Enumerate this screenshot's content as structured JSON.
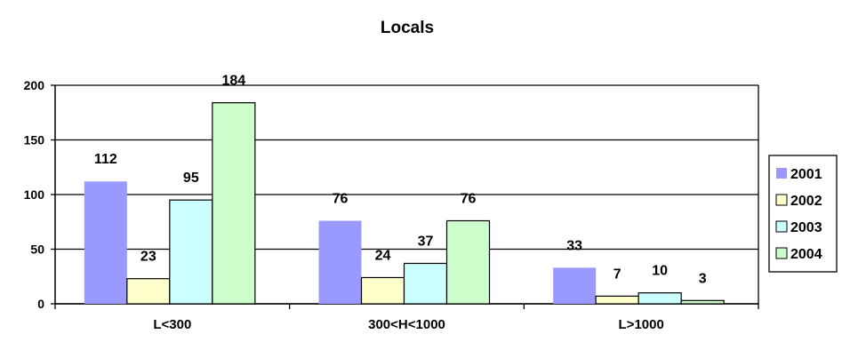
{
  "chart_data": {
    "type": "bar",
    "title": "Locals",
    "categories": [
      "L<300",
      "300<H<1000",
      "L>1000"
    ],
    "series": [
      {
        "name": "2001",
        "values": [
          112,
          76,
          33
        ],
        "color": "#9999FF"
      },
      {
        "name": "2002",
        "values": [
          23,
          24,
          7
        ],
        "color": "#FFFFCC"
      },
      {
        "name": "2003",
        "values": [
          95,
          37,
          10
        ],
        "color": "#CCFFFF"
      },
      {
        "name": "2004",
        "values": [
          184,
          76,
          3
        ],
        "color": "#CCFFCC"
      }
    ],
    "ylim": [
      0,
      200
    ],
    "yticks": [
      0,
      50,
      100,
      150,
      200
    ],
    "xlabel": "",
    "ylabel": "",
    "grid": true,
    "legend": "right"
  }
}
